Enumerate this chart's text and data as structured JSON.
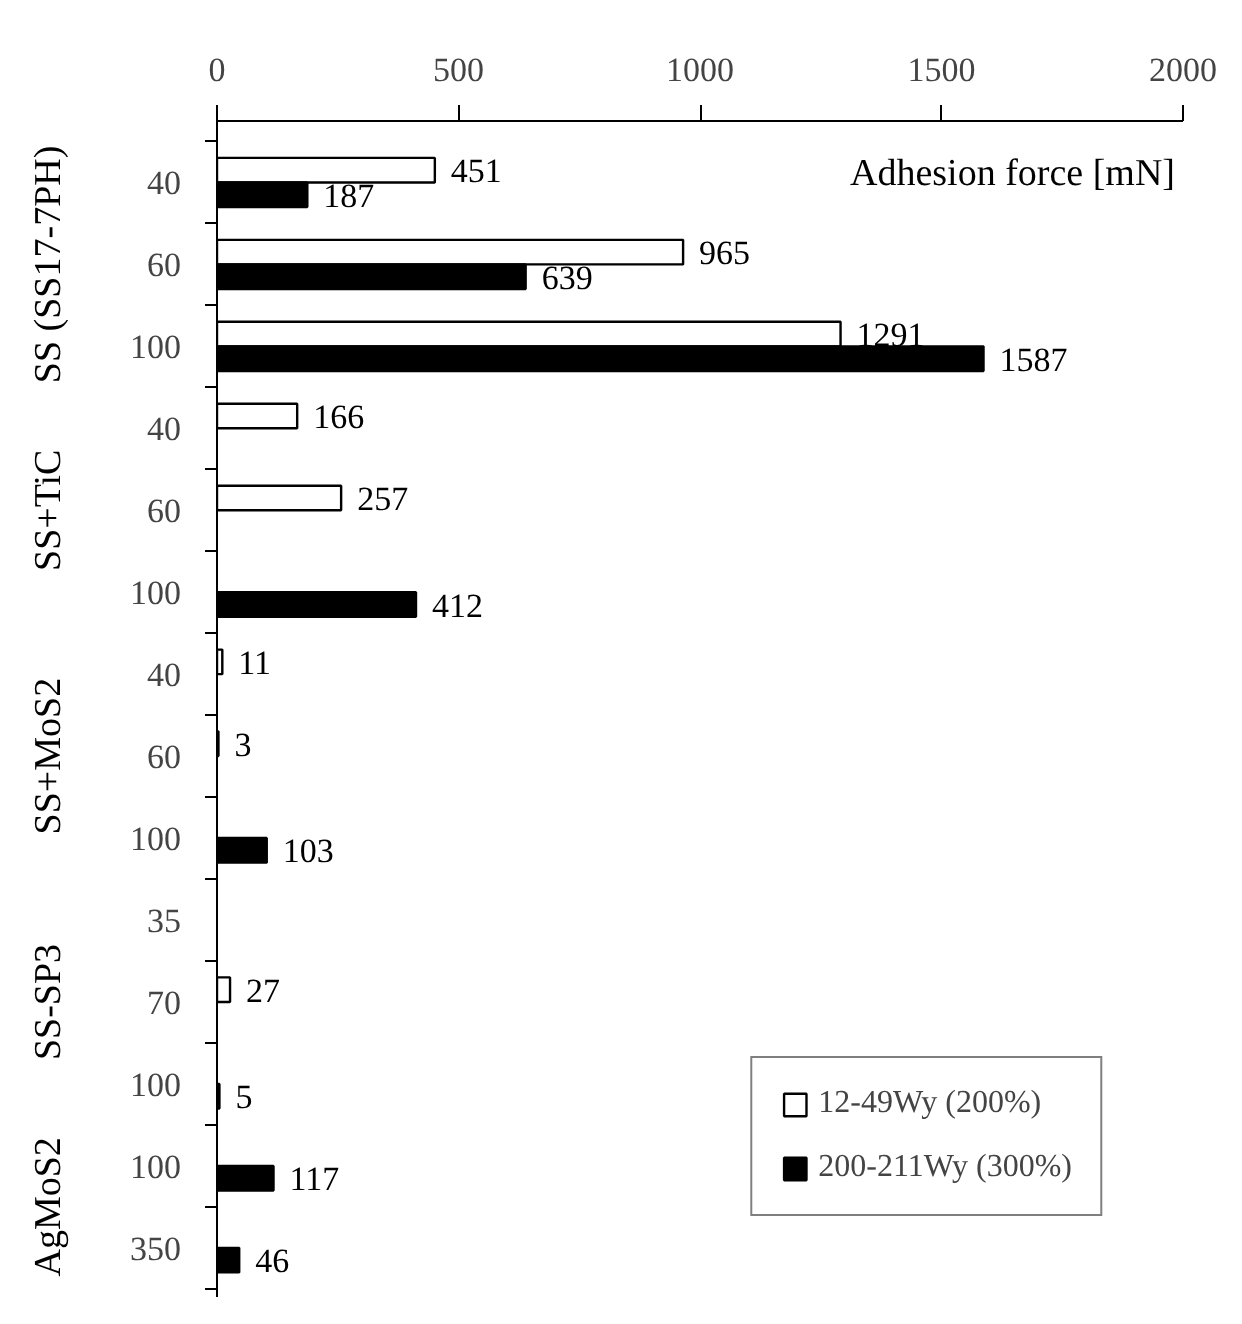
{
  "chart_data": {
    "type": "bar",
    "orientation": "horizontal",
    "xlabel": "Adhesion force [mN]",
    "categories": [
      "40",
      "60",
      "100",
      "40",
      "60",
      "100",
      "40",
      "60",
      "100",
      "35",
      "70",
      "100",
      "100",
      "350"
    ],
    "series": [
      {
        "name": "12-49Wy (200%)",
        "color": "#ffffff",
        "values": [
          451,
          965,
          1291,
          166,
          257,
          null,
          11,
          3,
          null,
          null,
          27,
          null,
          null,
          null
        ]
      },
      {
        "name": "200-211Wy (300%)",
        "color": "#000000",
        "values": [
          187,
          639,
          1587,
          null,
          null,
          412,
          null,
          null,
          103,
          null,
          null,
          5,
          117,
          46
        ]
      }
    ],
    "xlim": [
      0,
      2000
    ],
    "xticks": [
      0,
      500,
      1000,
      1500,
      2000
    ],
    "annotations": [
      "SS (SS17-7PH)",
      "SS+TiC",
      "SS+MoS2",
      "SS-SP3",
      "AgMoS2"
    ],
    "data_labels": true,
    "legend": "bottom right",
    "grid": false
  }
}
